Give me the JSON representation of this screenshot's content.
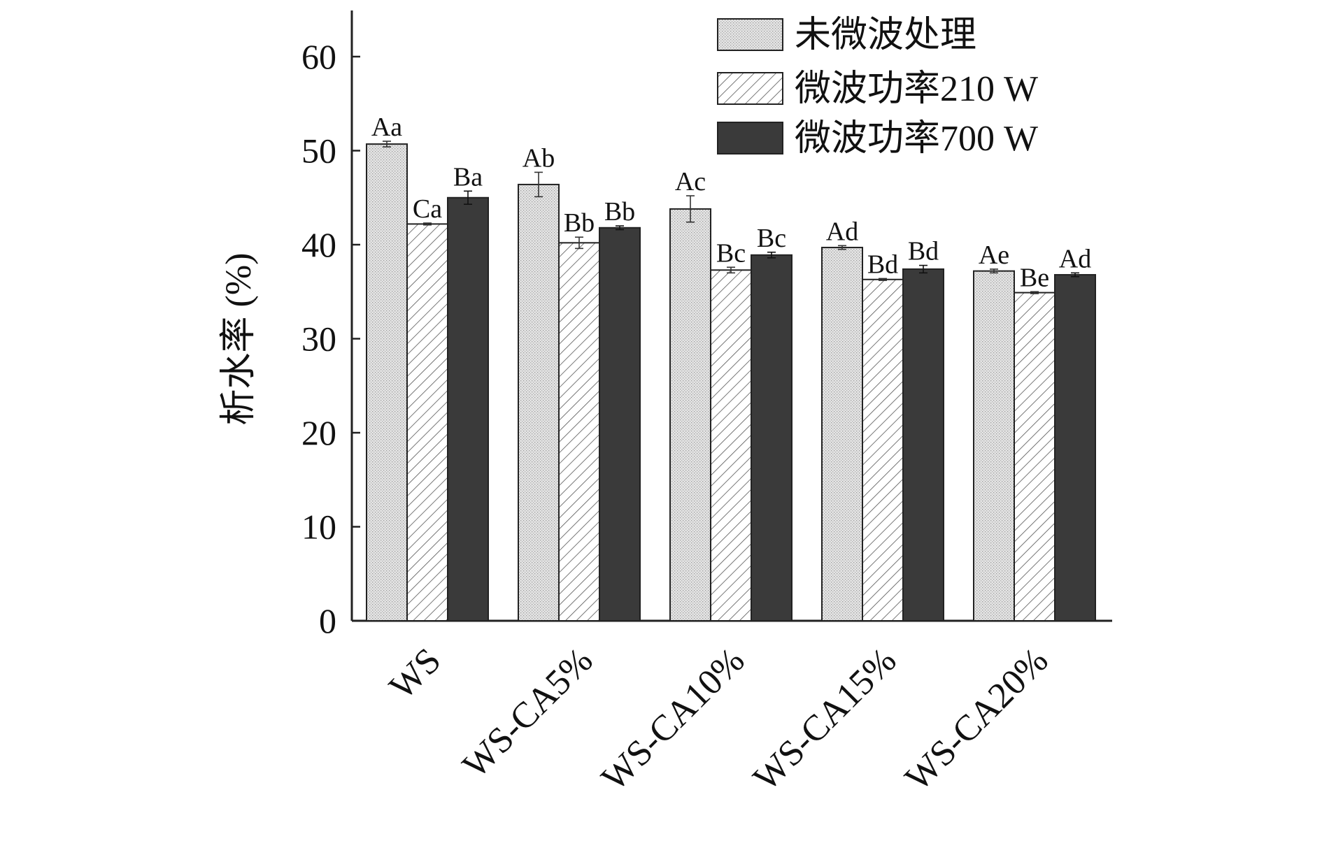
{
  "chart_data": {
    "type": "bar",
    "title": "",
    "xlabel": "",
    "ylabel": "析水率 (%)",
    "ylim": [
      0,
      65
    ],
    "yticks": [
      0,
      10,
      20,
      30,
      40,
      50,
      60
    ],
    "grid": false,
    "legend_position": "top-right",
    "categories": [
      "WS",
      "WS-CA5%",
      "WS-CA10%",
      "WS-CA15%",
      "WS-CA20%"
    ],
    "series": [
      {
        "name": "未微波处理",
        "pattern": "dotted-light",
        "color": "#e2e2e2",
        "values": [
          50.7,
          46.4,
          43.8,
          39.7,
          37.2
        ],
        "errors": [
          0.3,
          1.3,
          1.4,
          0.2,
          0.2
        ],
        "labels": [
          "Aa",
          "Ab",
          "Ac",
          "Ad",
          "Ae"
        ]
      },
      {
        "name": "微波功率210 W",
        "pattern": "hatched",
        "color": "#ffffff",
        "values": [
          42.2,
          40.2,
          37.3,
          36.3,
          34.9
        ],
        "errors": [
          0.1,
          0.6,
          0.3,
          0.1,
          0.1
        ],
        "labels": [
          "Ca",
          "Bb",
          "Bc",
          "Bd",
          "Be"
        ]
      },
      {
        "name": "微波功率700 W",
        "pattern": "solid-dark",
        "color": "#3a3a3a",
        "values": [
          45.0,
          41.8,
          38.9,
          37.4,
          36.8
        ],
        "errors": [
          0.7,
          0.2,
          0.3,
          0.4,
          0.2
        ],
        "labels": [
          "Ba",
          "Bb",
          "Bc",
          "Bd",
          "Ad"
        ]
      }
    ]
  }
}
